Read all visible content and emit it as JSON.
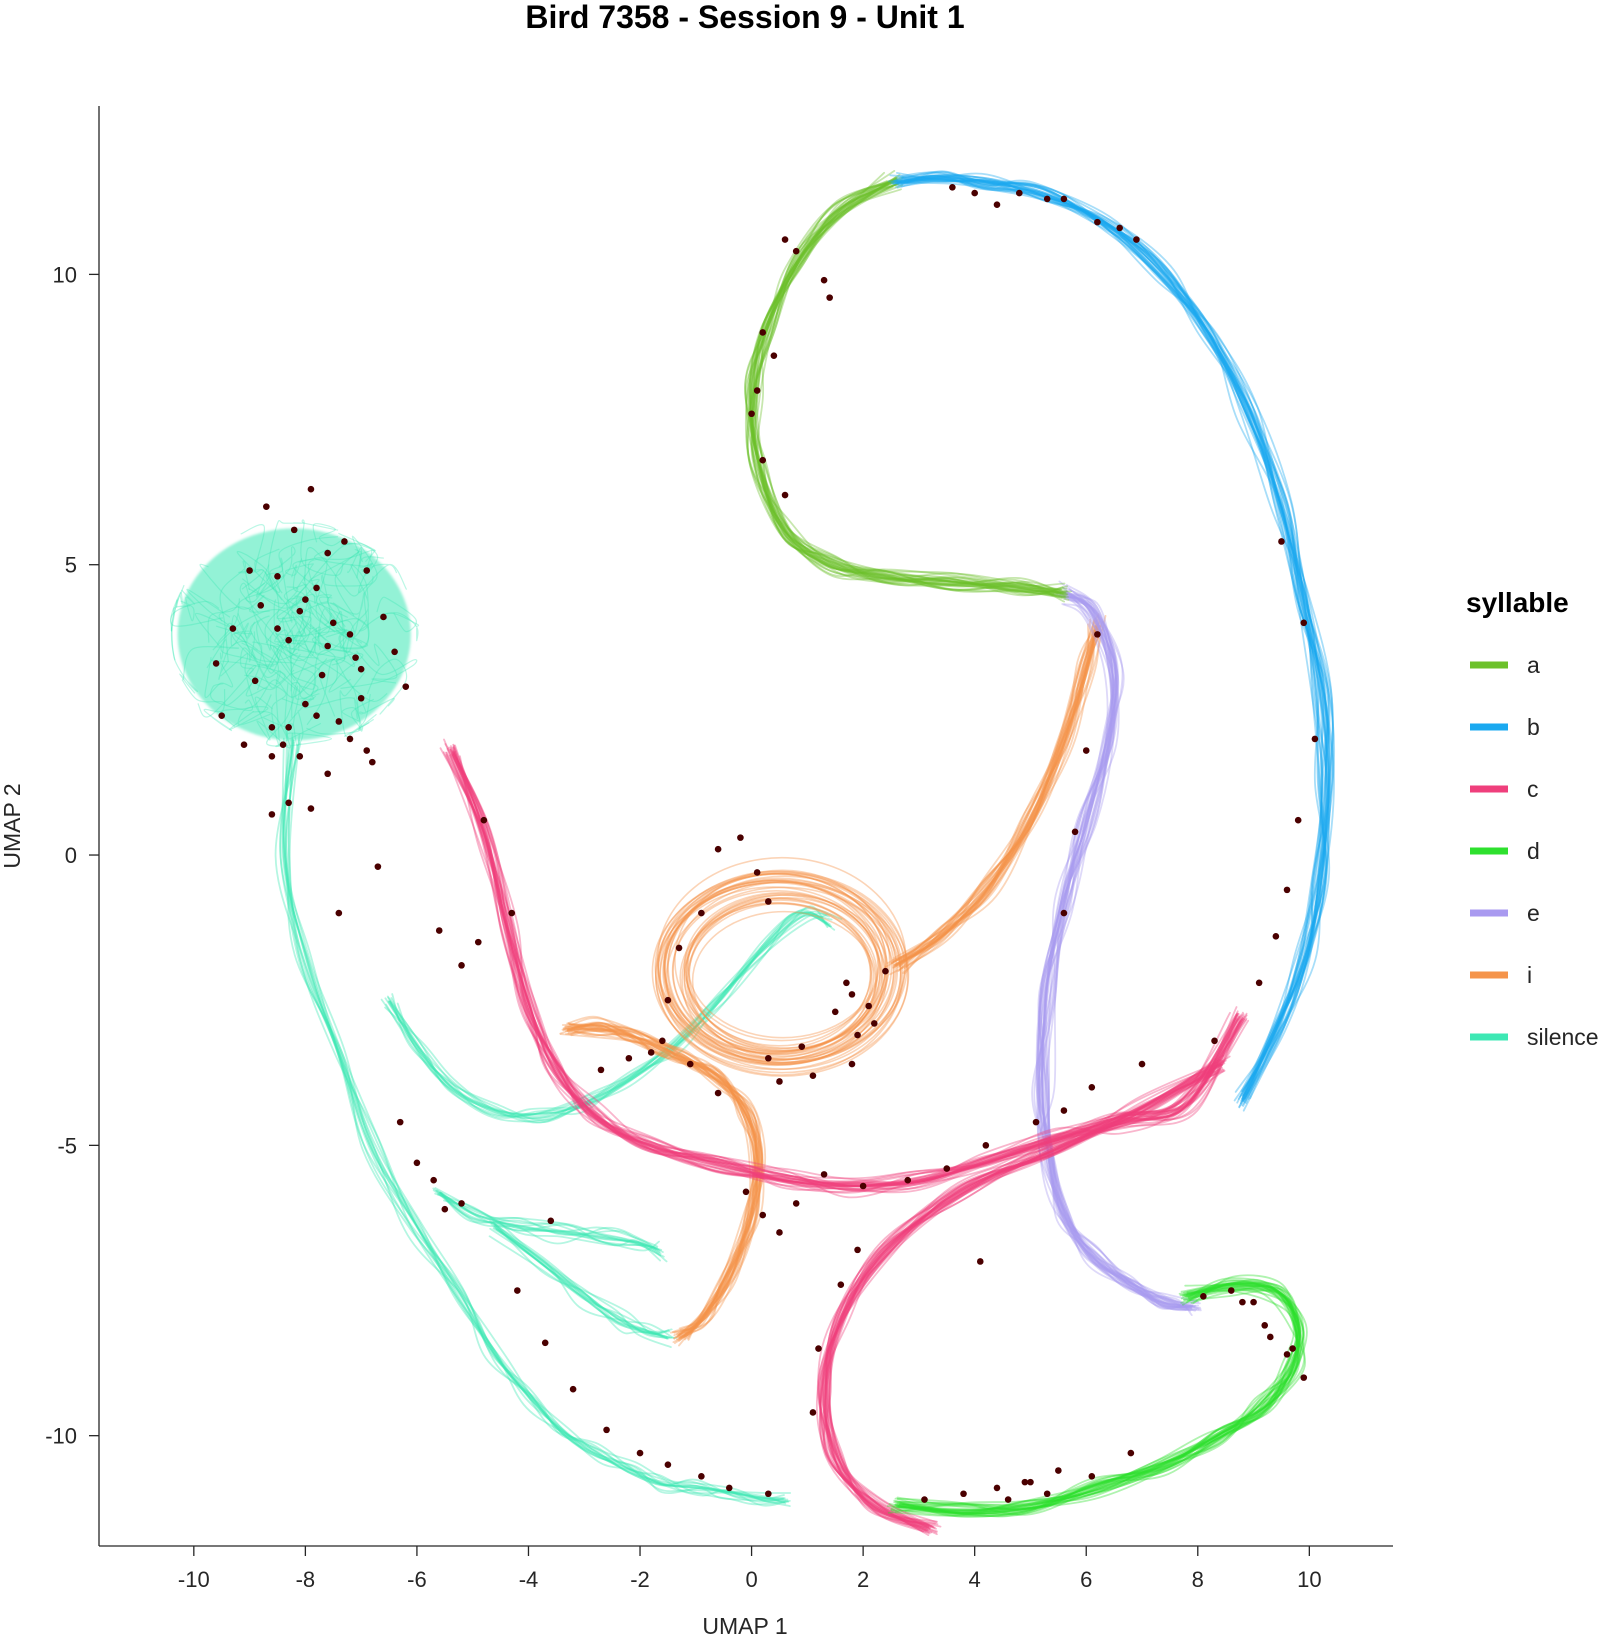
{
  "chart_data": {
    "type": "line",
    "title": "Bird 7358 - Session 9 - Unit 1",
    "xlabel": "UMAP 1",
    "ylabel": "UMAP 2",
    "xlim": [
      -11.7,
      11.5
    ],
    "ylim": [
      -11.9,
      12.9
    ],
    "xticks": [
      -10,
      -8,
      -6,
      -4,
      -2,
      0,
      2,
      4,
      6,
      8,
      10
    ],
    "yticks": [
      -10,
      -5,
      0,
      5,
      10
    ],
    "grid": false,
    "legend": {
      "title": "syllable",
      "position": "right",
      "entries": [
        "a",
        "b",
        "c",
        "d",
        "e",
        "i",
        "silence"
      ]
    },
    "colors": {
      "a": "#6cc12a",
      "b": "#1aa9f0",
      "c": "#ef3f7c",
      "d": "#2ee02e",
      "e": "#a99af0",
      "i": "#f5944a",
      "silence": "#3de8b4",
      "spike": "#4a0000"
    },
    "series": [
      {
        "name": "silence",
        "segments": [
          {
            "cloud": true,
            "center": [
              -8.2,
              3.8
            ],
            "radius": [
              2.2,
              2.0
            ]
          },
          {
            "x": [
              -8.2,
              -8.4,
              -8.0,
              -7.4,
              -6.8,
              -6.0,
              -5.2,
              -4.6,
              -4.0,
              -3.4,
              -2.8,
              -2.2,
              -1.6,
              -1.0,
              -0.4,
              0.2,
              0.6
            ],
            "y": [
              2.0,
              0.0,
              -1.8,
              -3.4,
              -5.0,
              -6.4,
              -7.6,
              -8.6,
              -9.3,
              -9.9,
              -10.3,
              -10.6,
              -10.8,
              -10.9,
              -11.0,
              -11.1,
              -11.1
            ]
          },
          {
            "x": [
              -5.6,
              -5.0,
              -4.2,
              -3.4,
              -2.6,
              -2.0,
              -1.6
            ],
            "y": [
              -5.8,
              -6.2,
              -6.4,
              -6.5,
              -6.6,
              -6.7,
              -6.8
            ]
          },
          {
            "x": [
              -4.6,
              -3.8,
              -3.0,
              -2.4,
              -1.9,
              -1.5
            ],
            "y": [
              -6.4,
              -7.0,
              -7.6,
              -8.0,
              -8.2,
              -8.3
            ]
          },
          {
            "x": [
              -6.5,
              -6.0,
              -5.4,
              -4.6,
              -3.8,
              -3.0,
              -2.2,
              -1.4,
              -0.6,
              0.2,
              0.9,
              1.4
            ],
            "y": [
              -2.5,
              -3.3,
              -4.0,
              -4.4,
              -4.5,
              -4.3,
              -3.9,
              -3.3,
              -2.5,
              -1.6,
              -1.0,
              -1.2
            ]
          }
        ]
      },
      {
        "name": "a",
        "segments": [
          {
            "x": [
              2.6,
              1.6,
              0.8,
              0.3,
              0.0,
              0.1,
              0.6,
              1.4,
              2.4,
              3.6,
              4.8,
              5.6
            ],
            "y": [
              11.6,
              11.1,
              10.2,
              9.1,
              8.0,
              6.8,
              5.6,
              5.0,
              4.8,
              4.7,
              4.6,
              4.5
            ]
          }
        ]
      },
      {
        "name": "b",
        "segments": [
          {
            "x": [
              2.6,
              3.4,
              4.2,
              5.2,
              6.3,
              7.3,
              8.2,
              8.9,
              9.5,
              9.9,
              10.2,
              10.3,
              10.2,
              9.9,
              9.4,
              8.8
            ],
            "y": [
              11.6,
              11.65,
              11.6,
              11.4,
              10.9,
              10.1,
              9.0,
              7.6,
              6.0,
              4.4,
              2.8,
              1.2,
              -0.4,
              -1.8,
              -3.0,
              -4.2
            ]
          }
        ]
      },
      {
        "name": "c",
        "segments": [
          {
            "x": [
              -5.4,
              -4.8,
              -4.4,
              -4.0,
              -3.5,
              -2.8,
              -1.8,
              -0.6,
              0.6,
              1.8,
              3.0,
              4.2,
              5.4,
              6.6,
              7.8,
              8.8
            ],
            "y": [
              1.8,
              0.4,
              -1.2,
              -2.6,
              -3.7,
              -4.5,
              -5.0,
              -5.3,
              -5.6,
              -5.7,
              -5.6,
              -5.3,
              -4.9,
              -4.6,
              -4.3,
              -2.8
            ]
          },
          {
            "x": [
              8.4,
              7.0,
              5.4,
              3.8,
              2.4,
              1.6,
              1.3,
              1.5,
              2.2,
              3.2
            ],
            "y": [
              -3.6,
              -4.4,
              -5.1,
              -5.8,
              -6.8,
              -8.0,
              -9.2,
              -10.4,
              -11.2,
              -11.6
            ]
          }
        ]
      },
      {
        "name": "d",
        "segments": [
          {
            "x": [
              7.8,
              8.6,
              9.4,
              9.8,
              9.7,
              9.2,
              8.4,
              7.4,
              6.2,
              5.0,
              3.8,
              2.6
            ],
            "y": [
              -7.6,
              -7.4,
              -7.5,
              -8.1,
              -8.8,
              -9.5,
              -10.0,
              -10.5,
              -10.9,
              -11.2,
              -11.3,
              -11.2
            ]
          }
        ]
      },
      {
        "name": "e",
        "segments": [
          {
            "x": [
              5.6,
              6.1,
              6.5,
              6.4,
              6.0,
              5.6,
              5.3,
              5.2,
              5.3,
              5.6,
              6.1,
              6.8,
              7.4,
              7.9
            ],
            "y": [
              4.5,
              4.2,
              3.2,
              2.0,
              0.6,
              -0.8,
              -2.4,
              -4.0,
              -5.2,
              -6.2,
              -6.9,
              -7.4,
              -7.7,
              -7.8
            ]
          }
        ]
      },
      {
        "name": "i",
        "segments": [
          {
            "ring": true,
            "center": [
              0.5,
              -2.0
            ],
            "radius": [
              2.2,
              1.8
            ]
          },
          {
            "x": [
              -1.3,
              -0.9,
              -0.4,
              0.0,
              0.1,
              -0.1,
              -0.6,
              -1.2,
              -1.7,
              -2.2,
              -2.8,
              -3.3
            ],
            "y": [
              -8.3,
              -8.0,
              -7.2,
              -6.2,
              -5.2,
              -4.4,
              -3.8,
              -3.5,
              -3.3,
              -3.1,
              -3.0,
              -3.0
            ]
          },
          {
            "x": [
              2.6,
              3.4,
              4.2,
              5.0,
              5.6,
              6.0,
              6.2
            ],
            "y": [
              -1.9,
              -1.4,
              -0.6,
              0.6,
              2.0,
              3.2,
              4.0
            ]
          }
        ]
      }
    ],
    "spikes": {
      "x": [
        -8.7,
        -7.9,
        -8.2,
        -7.6,
        -8.5,
        -7.3,
        -9.0,
        -7.8,
        -8.1,
        -6.9,
        -8.8,
        -7.5,
        -9.3,
        -6.6,
        -8.3,
        -7.1,
        -9.6,
        -6.4,
        -8.9,
        -7.7,
        -8.0,
        -7.0,
        -9.5,
        -6.2,
        -8.6,
        -7.2,
        -8.4,
        -6.8,
        -9.1,
        -7.4,
        -8.3,
        -7.9,
        -6.9,
        -8.6,
        -7.2,
        -8.0,
        -7.6,
        -7.0,
        -8.5,
        -7.8,
        0.6,
        0.8,
        1.3,
        1.4,
        0.2,
        0.4,
        0.1,
        0.0,
        0.2,
        0.6,
        3.6,
        4.0,
        4.4,
        4.8,
        5.3,
        5.6,
        6.2,
        6.6,
        6.9,
        9.5,
        9.9,
        10.1,
        9.8,
        9.6,
        9.4,
        9.1,
        6.2,
        6.0,
        5.8,
        5.6,
        -0.6,
        -0.2,
        0.1,
        0.3,
        -0.9,
        -1.3,
        1.7,
        2.1,
        2.2,
        1.9,
        1.8,
        1.5,
        0.9,
        0.3,
        0.5,
        1.1,
        1.8,
        2.4,
        -1.5,
        -1.8,
        -4.3,
        -4.9,
        -5.2,
        -5.6,
        -7.4,
        -7.6,
        -8.1,
        -8.3,
        -8.6,
        -6.7,
        -4.8,
        -6.3,
        -6.0,
        -5.7,
        -5.2,
        -3.6,
        -2.7,
        -2.2,
        -1.6,
        -1.1,
        -0.6,
        -0.1,
        0.2,
        0.5,
        0.8,
        1.3,
        2.0,
        2.8,
        3.5,
        4.2,
        5.1,
        5.6,
        6.1,
        7.0,
        8.3,
        8.8,
        9.3,
        9.6,
        9.9,
        9.7,
        9.2,
        3.1,
        3.8,
        4.4,
        5.0,
        5.5,
        6.1,
        6.8,
        -5.5,
        -4.2,
        -3.7,
        -3.2,
        -2.6,
        -2.0,
        -1.5,
        -0.9,
        -0.4,
        0.3,
        4.1,
        4.9,
        5.3,
        4.6,
        8.1,
        8.6,
        9.0,
        1.9,
        1.6,
        1.2,
        1.1
      ],
      "y": [
        6.0,
        6.3,
        5.6,
        5.2,
        4.8,
        5.4,
        4.9,
        4.6,
        4.2,
        4.9,
        4.3,
        4.0,
        3.9,
        4.1,
        3.7,
        3.4,
        3.3,
        3.5,
        3.0,
        3.1,
        2.6,
        2.7,
        2.4,
        2.9,
        2.2,
        2.0,
        1.9,
        1.6,
        1.9,
        2.3,
        0.9,
        0.8,
        1.8,
        1.7,
        3.8,
        4.4,
        3.6,
        3.2,
        3.9,
        2.4,
        10.6,
        10.4,
        9.9,
        9.6,
        9.0,
        8.6,
        8.0,
        7.6,
        6.8,
        6.2,
        11.5,
        11.4,
        11.2,
        11.4,
        11.3,
        11.3,
        10.9,
        10.8,
        10.6,
        5.4,
        4.0,
        2.0,
        0.6,
        -0.6,
        -1.4,
        -2.2,
        3.8,
        1.8,
        0.4,
        -1.0,
        0.1,
        0.3,
        -0.3,
        -0.8,
        -1.0,
        -1.6,
        -2.2,
        -2.6,
        -2.9,
        -3.1,
        -2.4,
        -2.7,
        -3.3,
        -3.5,
        -3.9,
        -3.8,
        -3.6,
        -2.0,
        -2.5,
        -3.4,
        -1.0,
        -1.5,
        -1.9,
        -1.3,
        -1.0,
        1.4,
        1.7,
        2.2,
        0.7,
        -0.2,
        0.6,
        -4.6,
        -5.3,
        -5.6,
        -6.0,
        -6.3,
        -3.7,
        -3.5,
        -3.2,
        -3.6,
        -4.1,
        -5.8,
        -6.2,
        -6.5,
        -6.0,
        -5.5,
        -5.7,
        -5.6,
        -5.4,
        -5.0,
        -4.6,
        -4.4,
        -4.0,
        -3.6,
        -3.2,
        -7.7,
        -8.3,
        -8.6,
        -9.0,
        -8.5,
        -8.1,
        -11.1,
        -11.0,
        -10.9,
        -10.8,
        -10.6,
        -10.7,
        -10.3,
        -6.1,
        -7.5,
        -8.4,
        -9.2,
        -9.9,
        -10.3,
        -10.5,
        -10.7,
        -10.9,
        -11.0,
        -7.0,
        -10.8,
        -11.0,
        -11.1,
        -7.6,
        -7.5,
        -7.7,
        -6.8,
        -7.4,
        -8.5,
        -9.6
      ]
    }
  }
}
